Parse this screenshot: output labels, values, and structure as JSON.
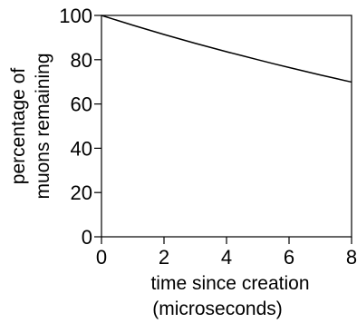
{
  "chart_data": {
    "type": "line",
    "title": "",
    "xlabel_lines": [
      "time since creation",
      "(microseconds)"
    ],
    "ylabel_lines": [
      "percentage of",
      "muons remaining"
    ],
    "xlim": [
      0,
      8
    ],
    "ylim": [
      0,
      100
    ],
    "x_ticks": [
      0,
      2,
      4,
      6,
      8
    ],
    "y_ticks": [
      0,
      20,
      40,
      60,
      80,
      100
    ],
    "x_tick_labels": [
      "0",
      "2",
      "4",
      "6",
      "8"
    ],
    "y_tick_labels": [
      "0",
      "20",
      "40",
      "60",
      "80",
      "100"
    ],
    "grid": false,
    "series": [
      {
        "x": [
          0,
          0.5,
          1,
          1.5,
          2,
          2.5,
          3,
          3.5,
          4,
          4.5,
          5,
          5.5,
          6,
          6.5,
          7,
          7.5,
          8
        ],
        "y": [
          100,
          97.8,
          95.6,
          93.5,
          91.4,
          89.4,
          87.4,
          85.5,
          83.6,
          81.8,
          80.0,
          78.2,
          76.5,
          74.8,
          73.1,
          71.5,
          69.9
        ],
        "color": "#000000"
      }
    ]
  }
}
